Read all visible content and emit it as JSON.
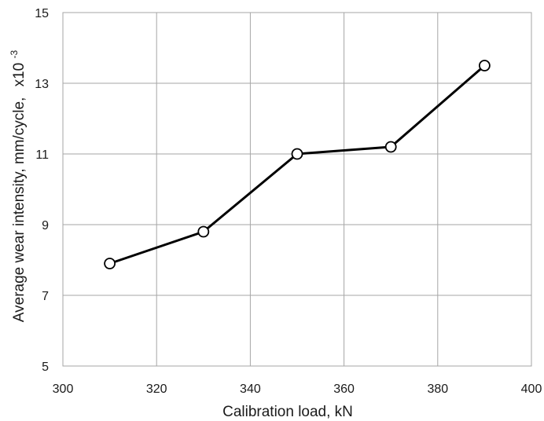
{
  "chart_data": {
    "type": "line",
    "xlabel": "Calibration load, kN",
    "ylabel": "Average wear intensity,  mm/cycle,",
    "ylabel_multiplier": "x10",
    "ylabel_multiplier_exponent": "-3",
    "xlim": [
      300,
      400
    ],
    "ylim": [
      5,
      15
    ],
    "xticks": [
      300,
      320,
      340,
      360,
      380,
      400
    ],
    "yticks": [
      5,
      7,
      9,
      11,
      13,
      15
    ],
    "grid": true,
    "legend": "none",
    "series": [
      {
        "x": [
          310,
          330,
          350,
          370,
          390
        ],
        "y": [
          7.9,
          8.8,
          11.0,
          11.2,
          13.5
        ]
      }
    ],
    "colors": {
      "line": "#000000",
      "marker_fill": "#ffffff",
      "grid": "#a6a6a6"
    }
  }
}
